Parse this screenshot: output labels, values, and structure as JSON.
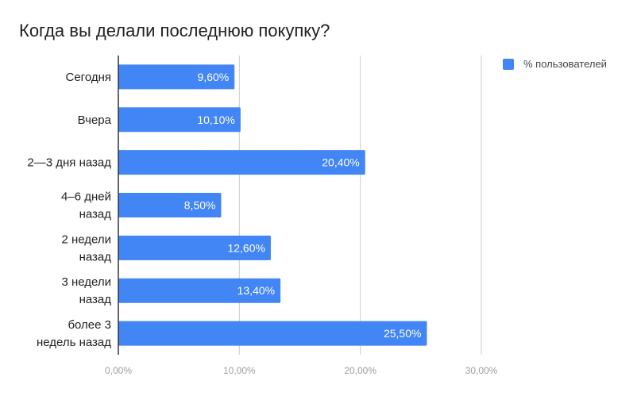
{
  "chart_data": {
    "type": "bar",
    "orientation": "horizontal",
    "title": "Когда вы делали последнюю покупку?",
    "categories": [
      [
        "Сегодня"
      ],
      [
        "Вчера"
      ],
      [
        "2—3 дня назад"
      ],
      [
        "4–6 дней",
        "назад"
      ],
      [
        "2 недели",
        "назад"
      ],
      [
        "3 недели",
        "назад"
      ],
      [
        "более 3",
        "недель назад"
      ]
    ],
    "series": [
      {
        "name": "% пользователей",
        "color": "#4285f4",
        "values": [
          9.6,
          10.1,
          20.4,
          8.5,
          12.6,
          13.4,
          25.5
        ],
        "value_labels": [
          "9,60%",
          "10,10%",
          "20,40%",
          "8,50%",
          "12,60%",
          "13,40%",
          "25,50%"
        ]
      }
    ],
    "xlim": [
      0,
      30
    ],
    "xticks": [
      0,
      10,
      20,
      30
    ],
    "xtick_labels": [
      "0,00%",
      "10,00%",
      "20,00%",
      "30,00%"
    ],
    "grid": true,
    "legend_position": "top-right"
  }
}
